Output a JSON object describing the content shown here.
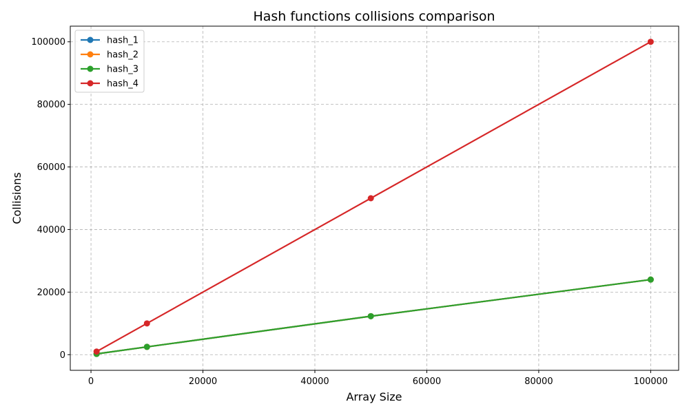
{
  "chart_data": {
    "type": "line",
    "title": "Hash functions collisions comparison",
    "xlabel": "Array Size",
    "ylabel": "Collisions",
    "x": [
      1000,
      10000,
      50000,
      100000
    ],
    "xlim": [
      -3700,
      105000
    ],
    "ylim": [
      -5000,
      105000
    ],
    "xticks": [
      0,
      20000,
      40000,
      60000,
      80000,
      100000
    ],
    "yticks": [
      0,
      20000,
      40000,
      60000,
      80000,
      100000
    ],
    "xtick_labels": [
      "0",
      "20000",
      "40000",
      "60000",
      "80000",
      "100000"
    ],
    "ytick_labels": [
      "0",
      "20000",
      "40000",
      "60000",
      "80000",
      "100000"
    ],
    "grid": true,
    "legend_position": "top-left",
    "series": [
      {
        "name": "hash_1",
        "color": "#1f77b4",
        "values": [
          250,
          2500,
          12300,
          24000
        ]
      },
      {
        "name": "hash_2",
        "color": "#ff7f0e",
        "values": [
          250,
          2500,
          12300,
          24000
        ]
      },
      {
        "name": "hash_3",
        "color": "#2ca02c",
        "values": [
          250,
          2500,
          12300,
          24000
        ]
      },
      {
        "name": "hash_4",
        "color": "#d62728",
        "values": [
          1000,
          10000,
          50000,
          100000
        ]
      }
    ]
  }
}
